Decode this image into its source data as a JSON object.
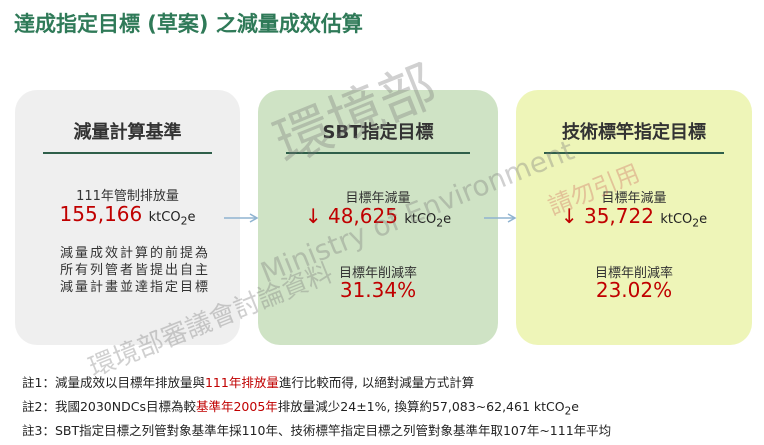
{
  "header": {
    "title": "達成指定目標 (草案) 之減量成效估算"
  },
  "unit": {
    "pre": "ktCO",
    "sub": "2",
    "post": "e"
  },
  "boxes": [
    {
      "heading": "減量計算基準",
      "label": "111年管制排放量",
      "value": "155,166",
      "note": "減量成效計算的前提為所有列管者皆提出自主減量計畫並達指定目標"
    },
    {
      "heading": "SBT指定目標",
      "label": "目標年減量",
      "arrow": "↓",
      "value": "48,625",
      "rate_label": "目標年削減率",
      "rate": "31.34%"
    },
    {
      "heading": "技術標竿指定目標",
      "label": "目標年減量",
      "arrow": "↓",
      "value": "35,722",
      "rate_label": "目標年削減率",
      "rate": "23.02%"
    }
  ],
  "notes": [
    [
      "註1：減量成效以目標年排放量與",
      "111年排放量",
      "進行比較而得, 以絕對減量方式計算"
    ],
    [
      "註2：我國2030NDCs目標為較",
      "基準年2005年",
      "排放量減少24±1%, 換算約57,083~62,461 ktCO",
      "2",
      "e"
    ],
    [
      "註3：SBT指定目標之列管對象基準年採110年、技術標竿指定目標之列管對象基準年取107年~111年平均"
    ]
  ],
  "watermark": {
    "org": "環境部",
    "org_en": "Ministry of Environment",
    "warning": "請勿引用",
    "meeting": "環境部審議會討論資料"
  }
}
